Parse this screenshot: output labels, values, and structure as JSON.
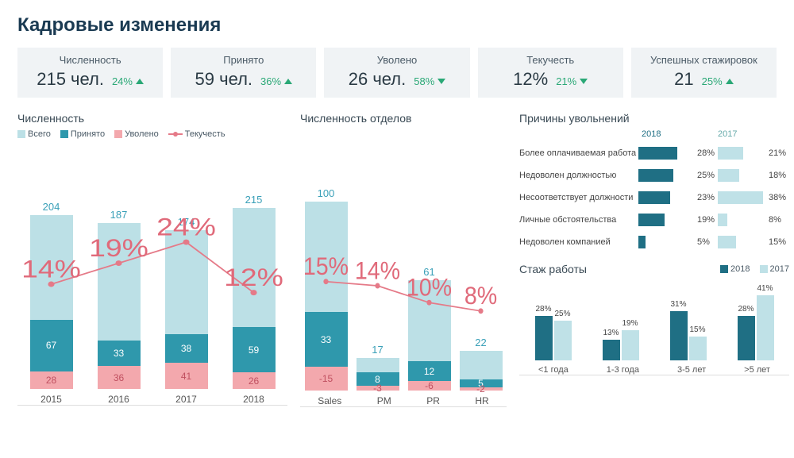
{
  "title": "Кадровые изменения",
  "colors": {
    "total": "#bce0e6",
    "hired": "#2f98ac",
    "fired": "#f3a8ad",
    "fired_chart2": "#f3a8ad",
    "line": "#e57a88",
    "dark18": "#1f6f84",
    "light17": "#bfe1e7",
    "kpi_bg": "#f0f3f5",
    "text_teal": "#3aa0b8"
  },
  "kpis": [
    {
      "label": "Численность",
      "value": "215 чел.",
      "delta": "24%",
      "dir": "up"
    },
    {
      "label": "Принято",
      "value": "59 чел.",
      "delta": "36%",
      "dir": "up"
    },
    {
      "label": "Уволено",
      "value": "26 чел.",
      "delta": "58%",
      "dir": "down"
    },
    {
      "label": "Текучесть",
      "value": "12%",
      "delta": "21%",
      "dir": "down"
    },
    {
      "label": "Успешных стажировок",
      "value": "21",
      "delta": "25%",
      "dir": "up"
    }
  ],
  "headcount_chart": {
    "title": "Численность",
    "legend": [
      "Всего",
      "Принято",
      "Уволено",
      "Текучесть"
    ],
    "categories": [
      "2015",
      "2016",
      "2017",
      "2018"
    ],
    "total": [
      204,
      187,
      174,
      215
    ],
    "hired": [
      67,
      33,
      38,
      59
    ],
    "fired": [
      28,
      36,
      41,
      26
    ],
    "turnover_pct": [
      14,
      19,
      24,
      12
    ],
    "ymax": 260,
    "fired_ymax": 50
  },
  "dept_chart": {
    "title": "Численность отделов",
    "categories": [
      "Sales",
      "PM",
      "PR",
      "HR"
    ],
    "total": [
      100,
      17,
      61,
      22
    ],
    "hired": [
      33,
      8,
      12,
      5
    ],
    "fired": [
      -15,
      -3,
      -6,
      -2
    ],
    "turnover_pct": [
      15,
      14,
      10,
      8
    ],
    "ymax": 120,
    "fired_ymax": 20
  },
  "reasons": {
    "title": "Причины увольнений",
    "years": [
      "2018",
      "2017"
    ],
    "rows": [
      {
        "label": "Более оплачиваемая работа",
        "y18": 28,
        "y17": 21
      },
      {
        "label": "Недоволен должностью",
        "y18": 25,
        "y17": 18
      },
      {
        "label": "Несоответствует должности",
        "y18": 23,
        "y17": 38
      },
      {
        "label": "Личные обстоятельства",
        "y18": 19,
        "y17": 8
      },
      {
        "label": "Недоволен компанией",
        "y18": 5,
        "y17": 15
      }
    ],
    "max": 40
  },
  "tenure": {
    "title": "Стаж работы",
    "years": [
      "2018",
      "2017"
    ],
    "categories": [
      "<1 года",
      "1-3 года",
      "3-5 лет",
      ">5 лет"
    ],
    "y18": [
      28,
      13,
      31,
      28
    ],
    "y17": [
      25,
      19,
      15,
      41
    ],
    "ymax": 45
  }
}
